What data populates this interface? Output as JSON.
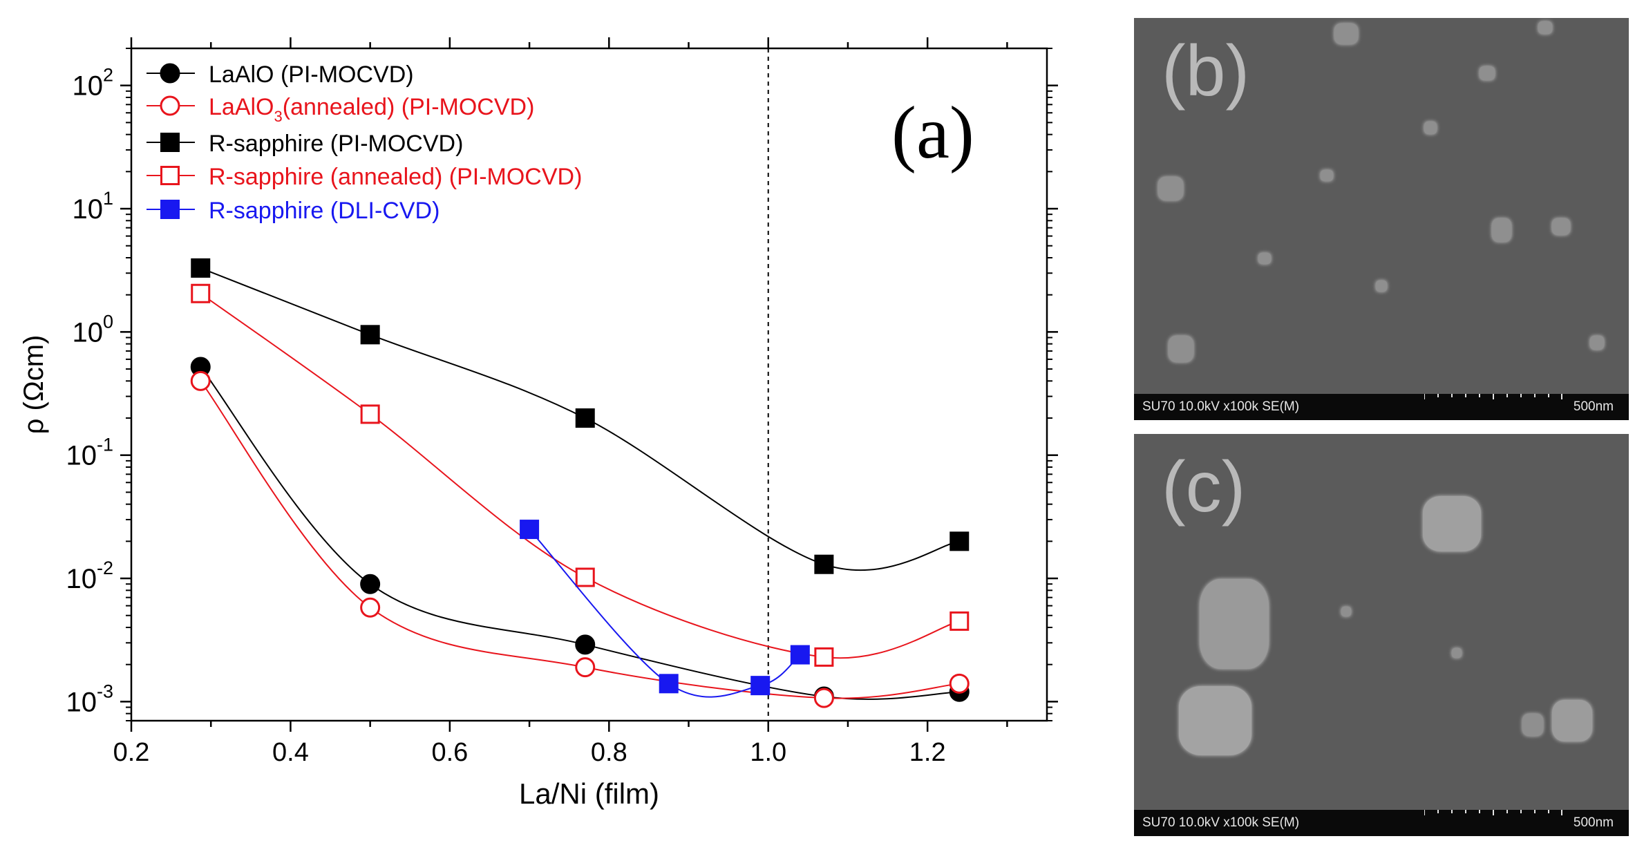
{
  "chart_data": {
    "type": "line",
    "panel_label": "(a)",
    "xlabel": "La/Ni (film)",
    "ylabel": "ρ (Ωcm)",
    "yscale": "log",
    "xlim": [
      0.2,
      1.35
    ],
    "ylim": [
      0.0007,
      200
    ],
    "x_ticks": [
      "0.2",
      "0.4",
      "0.6",
      "0.8",
      "1.0",
      "1.2"
    ],
    "y_ticks": [
      {
        "base": "10",
        "exp": "-3"
      },
      {
        "base": "10",
        "exp": "-2"
      },
      {
        "base": "10",
        "exp": "-1"
      },
      {
        "base": "10",
        "exp": "0"
      },
      {
        "base": "10",
        "exp": "1"
      },
      {
        "base": "10",
        "exp": "2"
      }
    ],
    "vline_x": 1.0,
    "series": [
      {
        "name": "LaAlO (PI-MOCVD)",
        "color": "#000000",
        "marker": "circle",
        "filled": true,
        "x": [
          0.287,
          0.5,
          0.77,
          1.07,
          1.24
        ],
        "y": [
          0.52,
          0.009,
          0.0029,
          0.0011,
          0.0012
        ]
      },
      {
        "name_main": "LaAlO",
        "name_sub": "3",
        "name_rest": "(annealed) (PI-MOCVD)",
        "color": "#e8141c",
        "marker": "circle",
        "filled": false,
        "x": [
          0.287,
          0.5,
          0.77,
          1.07,
          1.24
        ],
        "y": [
          0.4,
          0.0058,
          0.0019,
          0.00107,
          0.0014
        ]
      },
      {
        "name": "R-sapphire (PI-MOCVD)",
        "color": "#000000",
        "marker": "square",
        "filled": true,
        "x": [
          0.287,
          0.5,
          0.77,
          1.07,
          1.24
        ],
        "y": [
          3.3,
          0.95,
          0.2,
          0.013,
          0.02
        ]
      },
      {
        "name": "R-sapphire (annealed) (PI-MOCVD)",
        "color": "#e8141c",
        "marker": "square",
        "filled": false,
        "x": [
          0.287,
          0.5,
          0.77,
          1.07,
          1.24
        ],
        "y": [
          2.05,
          0.215,
          0.0102,
          0.0023,
          0.0045
        ]
      },
      {
        "name": "R-sapphire (DLI-CVD)",
        "color": "#1818f0",
        "marker": "square",
        "filled": true,
        "x": [
          0.7,
          0.875,
          0.99,
          1.04
        ],
        "y": [
          0.025,
          0.0014,
          0.00135,
          0.0024
        ]
      }
    ]
  },
  "sem_b": {
    "label": "(b)",
    "info": "SU70 10.0kV x100k SE(M)",
    "scale": "500nm"
  },
  "sem_c": {
    "label": "(c)",
    "info": "SU70 10.0kV x100k SE(M)",
    "scale": "500nm"
  }
}
